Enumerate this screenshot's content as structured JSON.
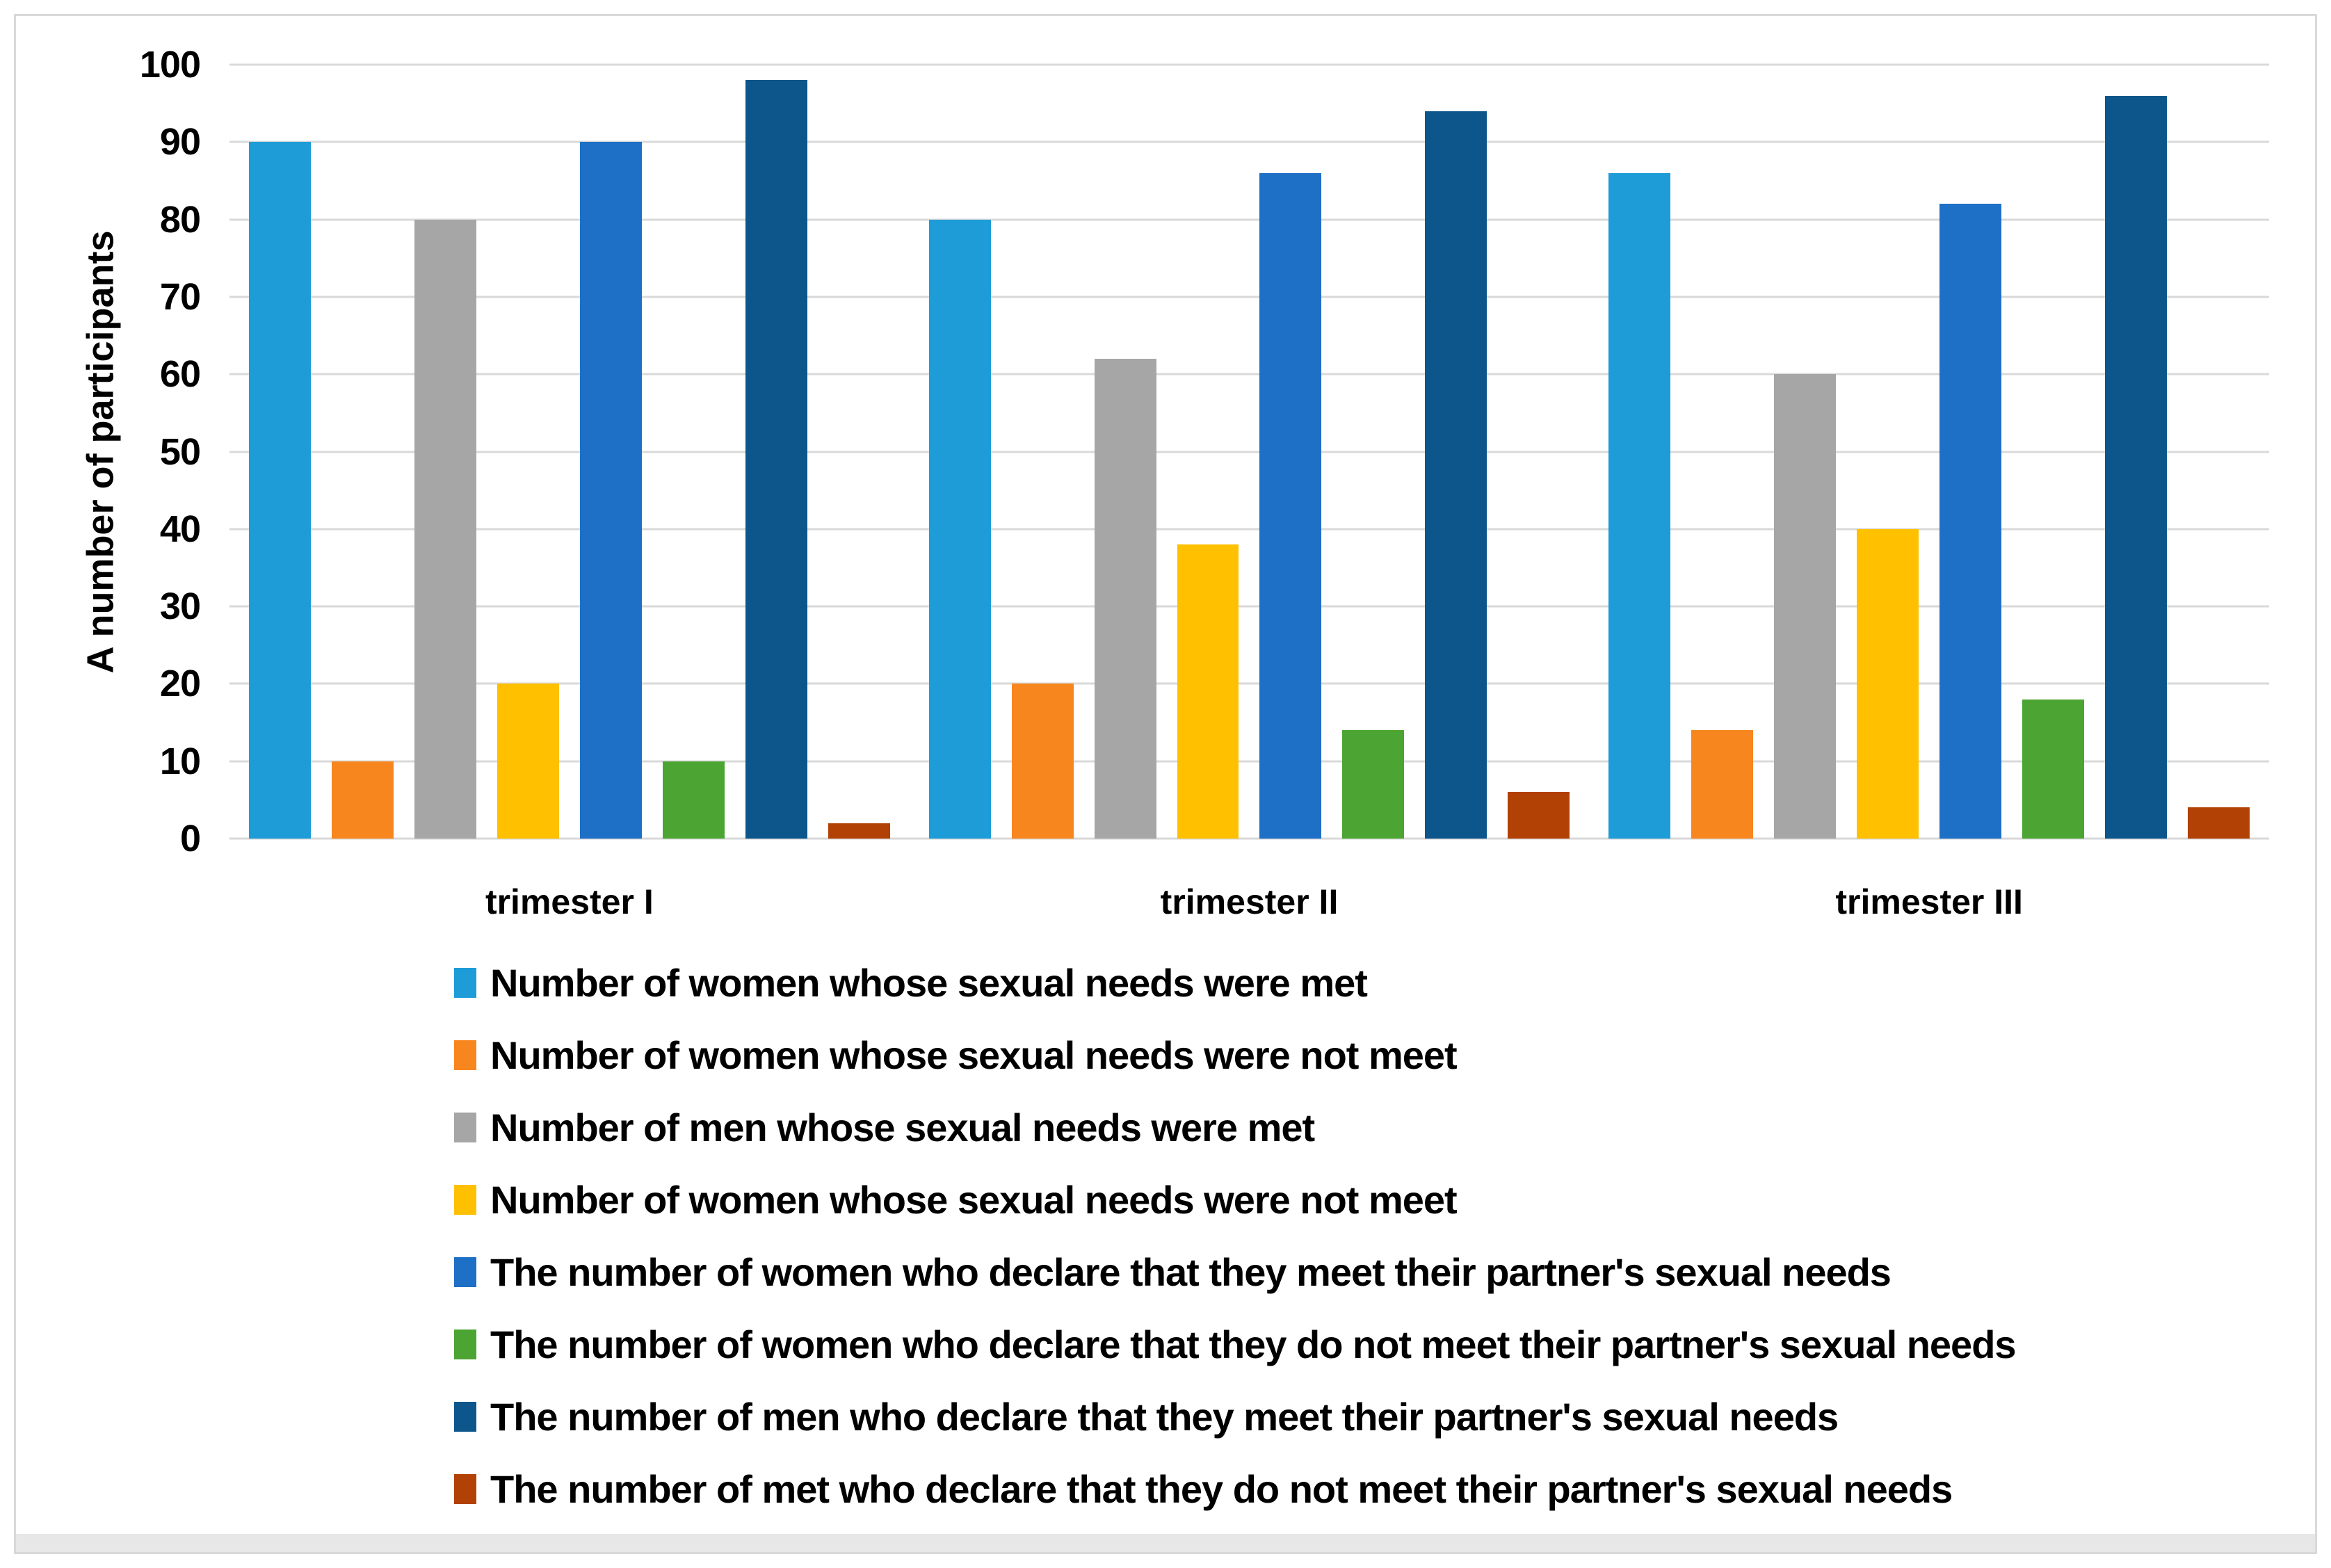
{
  "chart_data": {
    "type": "bar",
    "title": "",
    "xlabel": "",
    "ylabel": "A number of participants",
    "ylim": [
      0,
      100
    ],
    "yticks": [
      0,
      10,
      20,
      30,
      40,
      50,
      60,
      70,
      80,
      90,
      100
    ],
    "grid": "horizontal",
    "legend_position": "bottom-left",
    "categories": [
      "trimester I",
      "trimester II",
      "trimester III"
    ],
    "series": [
      {
        "name": "Number of women whose sexual needs were met",
        "color": "#1E9CD8",
        "values": [
          90,
          80,
          86
        ]
      },
      {
        "name": "Number of women whose sexual needs were not meet",
        "color": "#F8861F",
        "values": [
          10,
          20,
          14
        ]
      },
      {
        "name": "Number of men whose sexual needs were met",
        "color": "#A6A6A6",
        "values": [
          80,
          62,
          60
        ]
      },
      {
        "name": "Number of women whose sexual needs were not meet",
        "color": "#FFC000",
        "values": [
          20,
          38,
          40
        ]
      },
      {
        "name": "The number of women who declare that they meet their partner's sexual needs",
        "color": "#1E6FC6",
        "values": [
          90,
          86,
          82
        ]
      },
      {
        "name": "The number of women who declare that they do not meet their partner's sexual needs",
        "color": "#4CA433",
        "values": [
          10,
          14,
          18
        ]
      },
      {
        "name": "The number of men who declare that they meet their partner's sexual needs",
        "color": "#0D568C",
        "values": [
          98,
          94,
          96
        ]
      },
      {
        "name": "The number of met who declare that they do not meet their partner's sexual needs",
        "color": "#B24106",
        "values": [
          2,
          6,
          4
        ]
      }
    ]
  },
  "colors": {
    "background": "#FFFFFF",
    "frame_border": "#D9D9D9",
    "gridline": "#D9D9D9",
    "bottom_strip": "#E7E7E7",
    "text": "#000000"
  }
}
